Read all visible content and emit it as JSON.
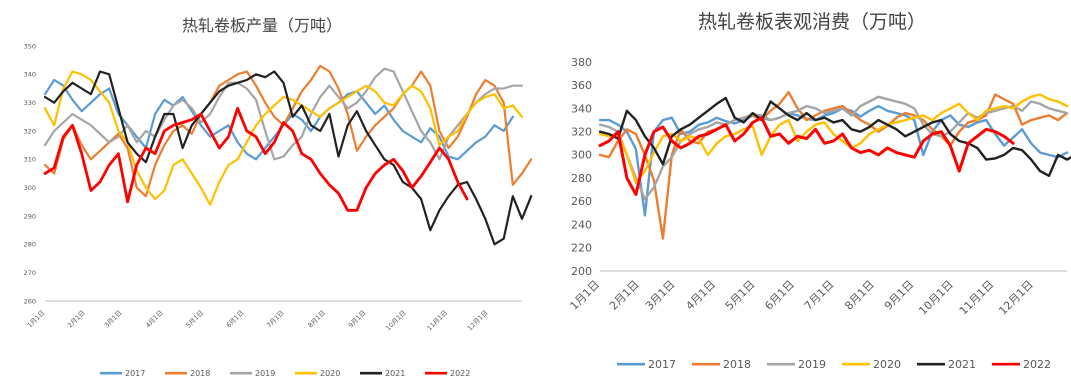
{
  "chart_data": [
    {
      "type": "line",
      "title": "热轧卷板产量（万吨）",
      "xlabel": "",
      "ylabel": "",
      "ylim": [
        260,
        350
      ],
      "yticks": [
        260,
        270,
        280,
        290,
        300,
        310,
        320,
        330,
        340,
        350
      ],
      "x_tick_labels": [
        "1月1日",
        "2月1日",
        "3月1日",
        "4月1日",
        "5月1日",
        "6月1日",
        "7月1日",
        "8月1日",
        "9月1日",
        "10月1日",
        "11月1日",
        "12月1日"
      ],
      "x_tick_weeks": [
        0,
        4.4,
        8.4,
        12.9,
        17.3,
        21.7,
        26.1,
        30.6,
        35,
        39.4,
        43.9,
        48.3
      ],
      "grid": false,
      "legend": "bottom",
      "series": [
        {
          "name": "2017",
          "color": "#5B9BD5",
          "values": [
            333,
            338,
            336,
            331,
            327,
            330,
            333,
            335,
            326,
            322,
            318,
            314,
            326,
            331,
            329,
            332,
            327,
            322,
            318,
            320,
            322,
            316,
            312,
            310,
            314,
            318,
            322,
            326,
            324,
            320,
            325,
            328,
            330,
            333,
            334,
            330,
            326,
            329,
            324,
            320,
            318,
            316,
            321,
            318,
            311,
            310,
            313,
            316,
            318,
            322,
            320,
            325
          ]
        },
        {
          "name": "2018",
          "color": "#ED7D31",
          "values": [
            308,
            305,
            317,
            322,
            315,
            310,
            313,
            316,
            319,
            314,
            300,
            297,
            308,
            315,
            320,
            322,
            319,
            326,
            330,
            336,
            338,
            340,
            341,
            336,
            330,
            325,
            322,
            328,
            334,
            338,
            343,
            341,
            335,
            326,
            313,
            318,
            322,
            325,
            328,
            333,
            336,
            341,
            336,
            320,
            314,
            318,
            325,
            333,
            338,
            336,
            330,
            301,
            305,
            310
          ]
        },
        {
          "name": "2019",
          "color": "#A5A5A5",
          "values": [
            315,
            320,
            323,
            326,
            324,
            322,
            319,
            316,
            318,
            322,
            316,
            320,
            318,
            324,
            329,
            331,
            328,
            323,
            326,
            332,
            337,
            337,
            335,
            331,
            320,
            310,
            311,
            315,
            318,
            326,
            332,
            336,
            332,
            328,
            330,
            334,
            339,
            342,
            341,
            334,
            327,
            320,
            316,
            310,
            318,
            322,
            326,
            330,
            333,
            335,
            335,
            336,
            336
          ]
        },
        {
          "name": "2020",
          "color": "#FFC000",
          "values": [
            328,
            322,
            335,
            341,
            340,
            338,
            334,
            330,
            320,
            316,
            306,
            300,
            296,
            299,
            308,
            310,
            305,
            300,
            294,
            302,
            308,
            310,
            316,
            322,
            326,
            329,
            332,
            331,
            329,
            327,
            325,
            328,
            330,
            332,
            334,
            336,
            334,
            330,
            329,
            333,
            336,
            334,
            328,
            315,
            318,
            320,
            326,
            330,
            332,
            333,
            328,
            329,
            325
          ]
        },
        {
          "name": "2021",
          "color": "#222222",
          "values": [
            332,
            330,
            334,
            337,
            335,
            333,
            341,
            340,
            328,
            316,
            312,
            309,
            318,
            326,
            326,
            314,
            322,
            326,
            330,
            334,
            336,
            337,
            338,
            340,
            339,
            341,
            337,
            325,
            329,
            322,
            320,
            326,
            311,
            322,
            327,
            320,
            315,
            310,
            308,
            302,
            300,
            296,
            285,
            292,
            297,
            301,
            302,
            296,
            289,
            280,
            282,
            297,
            289,
            297
          ]
        },
        {
          "name": "2022",
          "color": "#FF0000",
          "values": [
            305,
            307,
            318,
            322,
            312,
            299,
            302,
            308,
            312,
            295,
            308,
            314,
            312,
            320,
            322,
            323,
            324,
            326,
            320,
            314,
            318,
            328,
            320,
            318,
            312,
            316,
            323,
            320,
            312,
            310,
            305,
            301,
            298,
            292,
            292,
            300,
            305,
            308,
            310,
            306,
            300,
            304,
            309,
            314,
            310,
            302,
            296
          ]
        }
      ]
    },
    {
      "type": "line",
      "title": "热轧卷板表观消费（万吨）",
      "xlabel": "",
      "ylabel": "",
      "ylim": [
        200,
        380
      ],
      "yticks": [
        200,
        220,
        240,
        260,
        280,
        300,
        320,
        340,
        360,
        380
      ],
      "x_tick_labels": [
        "1月1日",
        "2月1日",
        "3月1日",
        "4月1日",
        "5月1日",
        "6月1日",
        "7月1日",
        "8月1日",
        "9月1日",
        "10月1日",
        "11月1日",
        "12月1日"
      ],
      "x_tick_weeks": [
        0,
        4.4,
        8.4,
        12.9,
        17.3,
        21.7,
        26.1,
        30.6,
        35,
        39.4,
        43.9,
        48.3
      ],
      "grid": false,
      "legend": "bottom",
      "series": [
        {
          "name": "2017",
          "color": "#5B9BD5",
          "values": [
            330,
            330,
            326,
            320,
            305,
            248,
            320,
            330,
            332,
            318,
            320,
            326,
            328,
            332,
            329,
            327,
            330,
            334,
            332,
            330,
            332,
            336,
            334,
            331,
            330,
            334,
            336,
            340,
            338,
            333,
            338,
            342,
            338,
            336,
            334,
            330,
            300,
            320,
            330,
            334,
            326,
            324,
            328,
            330,
            318,
            308,
            315,
            322,
            310,
            302,
            300,
            298,
            302
          ]
        },
        {
          "name": "2018",
          "color": "#ED7D31",
          "values": [
            300,
            298,
            312,
            322,
            318,
            300,
            278,
            228,
            300,
            322,
            312,
            310,
            320,
            322,
            326,
            330,
            332,
            334,
            330,
            338,
            344,
            354,
            340,
            330,
            334,
            338,
            340,
            342,
            336,
            330,
            326,
            320,
            325,
            332,
            336,
            334,
            330,
            322,
            316,
            308,
            320,
            328,
            330,
            334,
            352,
            348,
            344,
            326,
            330,
            332,
            334,
            330,
            336
          ]
        },
        {
          "name": "2019",
          "color": "#A5A5A5",
          "values": [
            326,
            324,
            320,
            300,
            280,
            262,
            272,
            290,
            298,
            312,
            318,
            322,
            324,
            328,
            326,
            330,
            332,
            335,
            334,
            330,
            332,
            336,
            338,
            342,
            340,
            336,
            338,
            340,
            334,
            342,
            346,
            350,
            348,
            346,
            344,
            340,
            326,
            318,
            316,
            320,
            328,
            336,
            332,
            336,
            338,
            340,
            342,
            338,
            346,
            344,
            340,
            338,
            336
          ]
        },
        {
          "name": "2020",
          "color": "#FFC000",
          "values": [
            318,
            316,
            318,
            300,
            276,
            286,
            302,
            316,
            318,
            312,
            316,
            314,
            300,
            310,
            316,
            318,
            322,
            325,
            300,
            316,
            326,
            330,
            312,
            320,
            326,
            328,
            318,
            312,
            306,
            310,
            318,
            322,
            326,
            328,
            330,
            332,
            334,
            330,
            336,
            340,
            344,
            336,
            330,
            338,
            340,
            342,
            340,
            346,
            350,
            352,
            348,
            346,
            342
          ]
        },
        {
          "name": "2021",
          "color": "#222222",
          "values": [
            320,
            318,
            314,
            338,
            330,
            316,
            306,
            292,
            316,
            322,
            326,
            332,
            338,
            344,
            349,
            332,
            328,
            336,
            330,
            346,
            340,
            334,
            330,
            336,
            330,
            332,
            328,
            330,
            322,
            320,
            324,
            330,
            326,
            322,
            316,
            320,
            324,
            328,
            330,
            318,
            312,
            310,
            306,
            296,
            297,
            300,
            306,
            304,
            296,
            286,
            282,
            300,
            296,
            300
          ]
        },
        {
          "name": "2022",
          "color": "#FF0000",
          "values": [
            308,
            312,
            320,
            280,
            266,
            300,
            320,
            324,
            312,
            306,
            310,
            316,
            318,
            322,
            326,
            312,
            318,
            328,
            332,
            316,
            318,
            310,
            316,
            314,
            322,
            310,
            312,
            318,
            306,
            302,
            304,
            300,
            306,
            302,
            300,
            298,
            312,
            318,
            320,
            308,
            286,
            310,
            316,
            322,
            320,
            316,
            310
          ]
        }
      ]
    }
  ]
}
